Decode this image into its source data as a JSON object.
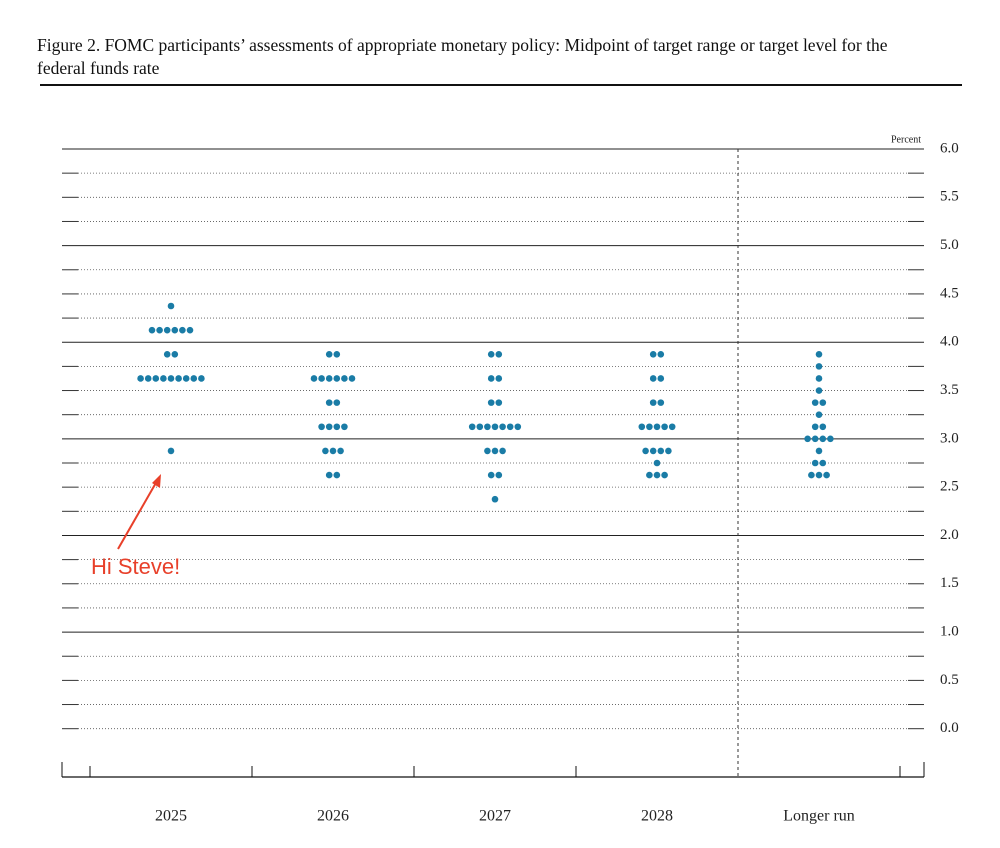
{
  "chart_data": {
    "type": "dot",
    "title": "Figure 2. FOMC participants’ assessments of appropriate monetary policy: Midpoint of target range or target level for the federal funds rate",
    "ylabel": "Percent",
    "annotation": "Hi Steve!",
    "color": "#1a7ca6",
    "annotation_color": "#e8402a",
    "categories": [
      "2025",
      "2026",
      "2027",
      "2028",
      "Longer run"
    ],
    "values": [
      [
        4.375,
        4.125,
        4.125,
        4.125,
        4.125,
        4.125,
        4.125,
        3.875,
        3.875,
        3.625,
        3.625,
        3.625,
        3.625,
        3.625,
        3.625,
        3.625,
        3.625,
        3.625,
        2.875
      ],
      [
        3.875,
        3.875,
        3.625,
        3.625,
        3.625,
        3.625,
        3.625,
        3.625,
        3.375,
        3.375,
        3.125,
        3.125,
        3.125,
        3.125,
        2.875,
        2.875,
        2.875,
        2.625,
        2.625
      ],
      [
        3.875,
        3.875,
        3.625,
        3.625,
        3.375,
        3.375,
        3.125,
        3.125,
        3.125,
        3.125,
        3.125,
        3.125,
        3.125,
        2.875,
        2.875,
        2.875,
        2.625,
        2.625,
        2.375
      ],
      [
        3.875,
        3.875,
        3.625,
        3.625,
        3.375,
        3.375,
        3.125,
        3.125,
        3.125,
        3.125,
        3.125,
        2.875,
        2.875,
        2.875,
        2.875,
        2.75,
        2.625,
        2.625,
        2.625
      ],
      [
        3.875,
        3.75,
        3.625,
        3.5,
        3.375,
        3.375,
        3.25,
        3.125,
        3.125,
        3.0,
        3.0,
        3.0,
        3.0,
        2.875,
        2.75,
        2.75,
        2.625,
        2.625,
        2.625
      ]
    ],
    "ylim": [
      -0.5,
      6.0
    ],
    "yticks": [
      {
        "value": 0,
        "label": "0.0"
      },
      0.5,
      {
        "value": 1,
        "label": "1.0"
      },
      1.5,
      {
        "value": 2,
        "label": "2.0"
      },
      2.5,
      {
        "value": 3,
        "label": "3.0"
      },
      3.5,
      {
        "value": 4,
        "label": "4.0"
      },
      4.5,
      {
        "value": 5,
        "label": "5.0"
      },
      5.5,
      {
        "value": 6,
        "label": "6.0"
      }
    ],
    "grid": true
  }
}
